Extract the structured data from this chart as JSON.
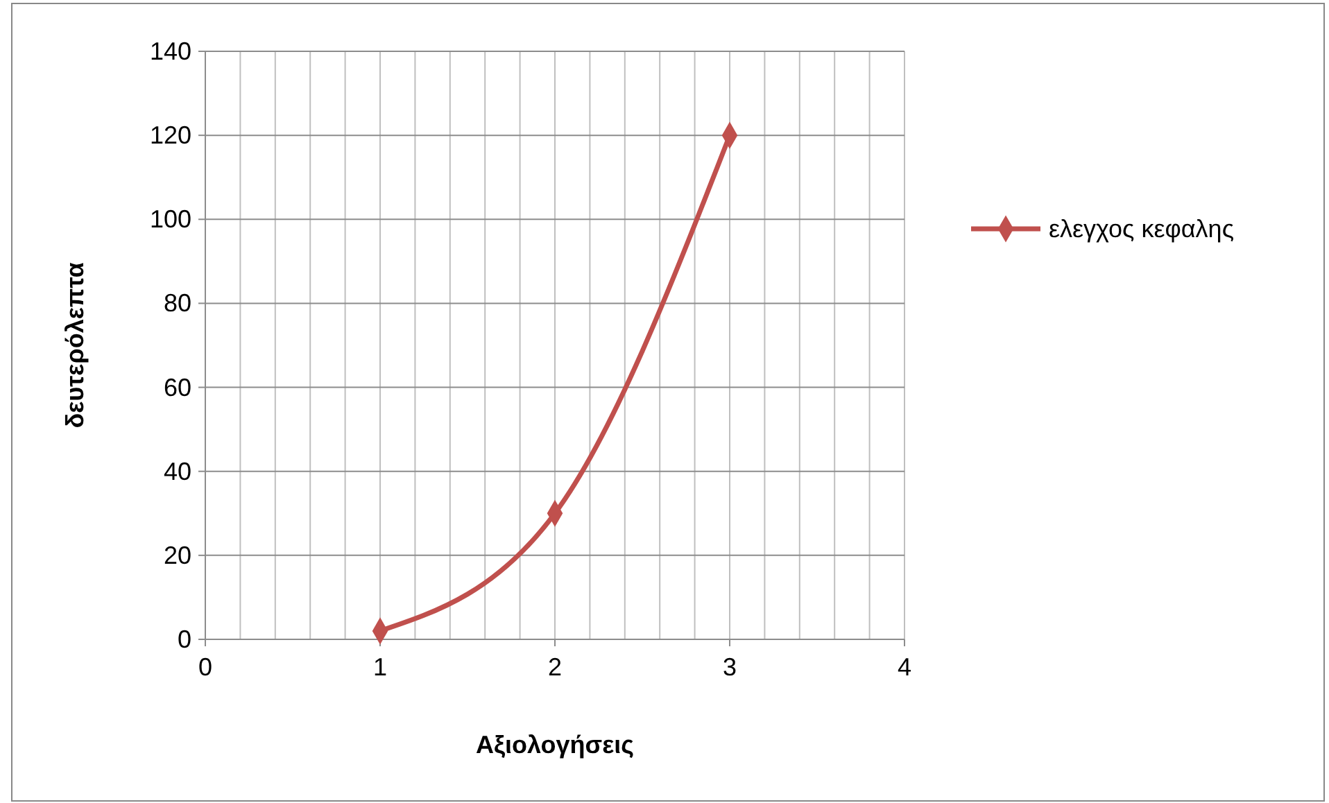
{
  "chart_data": {
    "type": "line",
    "xlabel": "Αξιολογήσεις",
    "ylabel": "δευτερόλεπτα",
    "series": [
      {
        "name": "ελεγχος κεφαλης",
        "color": "#c0504d",
        "x": [
          1,
          2,
          3
        ],
        "values": [
          2,
          30,
          120
        ]
      }
    ],
    "xlim": [
      0,
      4
    ],
    "xticks": [
      0,
      {
        "value": 0.2,
        "label": null
      },
      {
        "value": 0.4,
        "label": null
      },
      {
        "value": 0.6,
        "label": null
      },
      {
        "value": 0.8,
        "label": null
      },
      1,
      {
        "value": 1.2,
        "label": null
      },
      {
        "value": 1.4,
        "label": null
      },
      {
        "value": 1.6,
        "label": null
      },
      {
        "value": 1.8,
        "label": null
      },
      2,
      {
        "value": 2.2,
        "label": null
      },
      {
        "value": 2.4,
        "label": null
      },
      {
        "value": 2.6,
        "label": null
      },
      {
        "value": 2.8,
        "label": null
      },
      3,
      {
        "value": 3.2,
        "label": null
      },
      {
        "value": 3.4,
        "label": null
      },
      {
        "value": 3.6,
        "label": null
      },
      {
        "value": 3.8,
        "label": null
      },
      4
    ],
    "ylim": [
      0,
      140
    ],
    "yticks": [
      0,
      20,
      40,
      60,
      80,
      100,
      120,
      140
    ],
    "grid": true,
    "legend": "right",
    "marker": "diamond",
    "line_style": "solid"
  }
}
